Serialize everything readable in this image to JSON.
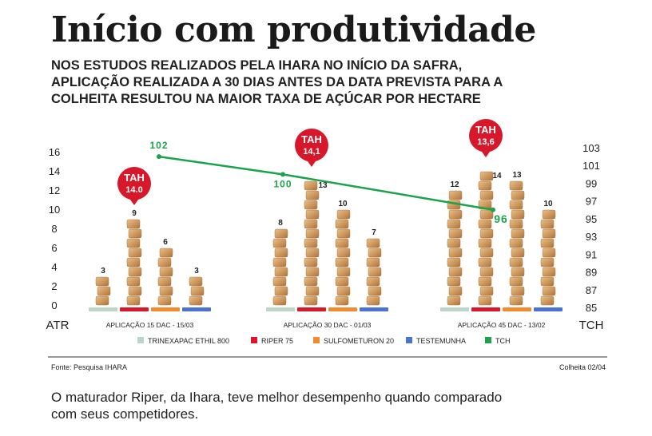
{
  "title": "Início com produtividade",
  "subtitle": [
    "NOS ESTUDOS REALIZADOS PELA IHARA NO INÍCIO DA SAFRA,",
    "APLICAÇÃO REALIZADA A 30 DIAS ANTES DA DATA PREVISTA PARA A",
    "COLHEITA RESULTOU NA MAIOR TAXA DE AÇÚCAR POR HECTARE"
  ],
  "chart_data": {
    "type": "bar",
    "categories": [
      "APLICAÇÃO 15 DAC - 15/03",
      "APLICAÇÃO 30 DAC - 01/03",
      "APLICAÇÃO 45 DAC - 13/02"
    ],
    "series": [
      {
        "name": "TRINEXAPAC ETHIL 800",
        "color": "#b9d6c8",
        "values": [
          3,
          8,
          12
        ]
      },
      {
        "name": "RIPER 75",
        "color": "#d7182a",
        "values": [
          9,
          13,
          14
        ]
      },
      {
        "name": "SULFOMETURON 20",
        "color": "#f28a30",
        "values": [
          6,
          10,
          13
        ]
      },
      {
        "name": "TESTEMUNHA",
        "color": "#4a72d0",
        "values": [
          3,
          7,
          10
        ]
      }
    ],
    "line": {
      "name": "TCH",
      "type": "line",
      "color": "#1aa34a",
      "values": [
        102,
        100,
        96
      ],
      "labels": [
        "102",
        "100",
        "96"
      ]
    },
    "tah": {
      "label": "TAH",
      "values": [
        "14.0",
        "14,1",
        "13,6"
      ]
    },
    "ylabel": "ATR",
    "ylim": [
      0,
      16
    ],
    "yticks": [
      0,
      2,
      4,
      6,
      8,
      10,
      12,
      14,
      16
    ],
    "y2label": "TCH",
    "y2lim": [
      85,
      103
    ],
    "y2ticks": [
      85,
      87,
      89,
      91,
      93,
      95,
      97,
      99,
      101,
      103
    ],
    "legend": "bottom"
  },
  "footer": {
    "source": "Fonte: Pesquisa IHARA",
    "harvest": "Colheita 02/04"
  },
  "note": [
    "O maturador Riper, da Ihara, teve melhor desempenho quando comparado",
    "com seus competidores."
  ]
}
